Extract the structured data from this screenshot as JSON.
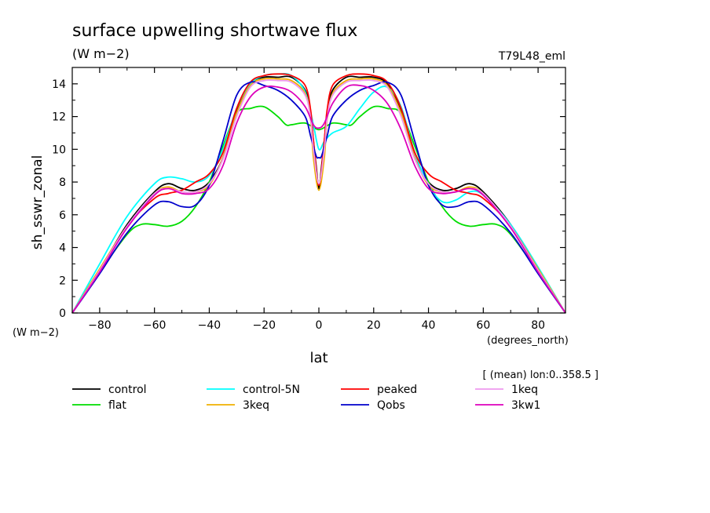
{
  "chart_data": {
    "type": "line",
    "title": "surface upwelling shortwave flux",
    "units": "(W m−2)",
    "experiment": "T79L48_eml",
    "xlabel": "lat",
    "xunits": "(degrees_north)",
    "ylabel": "sh_sswr_zonal",
    "yunits": "(W m−2)",
    "subset_note": "[ (mean) lon:0..358.5 ]",
    "xlim": [
      -90,
      90
    ],
    "ylim": [
      0,
      15
    ],
    "xticks": [
      -80,
      -60,
      -40,
      -20,
      0,
      20,
      40,
      60,
      80
    ],
    "yticks": [
      0,
      2,
      4,
      6,
      8,
      10,
      12,
      14
    ],
    "xtick_labels": [
      "−80",
      "−60",
      "−40",
      "−20",
      "0",
      "20",
      "40",
      "60",
      "80"
    ],
    "ytick_labels": [
      "0",
      "2",
      "4",
      "6",
      "8",
      "10",
      "12",
      "14"
    ],
    "grid": false,
    "legend_position": "bottom",
    "series": [
      {
        "name": "control",
        "color": "#000000",
        "x": [
          -90,
          -80,
          -70,
          -60,
          -55,
          -50,
          -45,
          -40,
          -35,
          -30,
          -25,
          -20,
          -15,
          -10,
          -5,
          -3,
          -2,
          -1,
          0,
          1,
          2,
          3,
          5,
          10,
          15,
          20,
          25,
          30,
          35,
          40,
          45,
          50,
          55,
          60,
          70,
          80,
          90
        ],
        "y": [
          0,
          2.6,
          5.4,
          7.4,
          7.9,
          7.6,
          7.5,
          8.0,
          9.5,
          12.3,
          14.0,
          14.4,
          14.4,
          14.4,
          13.6,
          12.2,
          10.5,
          9.0,
          7.6,
          9.0,
          10.5,
          12.2,
          13.6,
          14.4,
          14.4,
          14.4,
          14.0,
          12.3,
          9.5,
          8.0,
          7.5,
          7.6,
          7.9,
          7.4,
          5.4,
          2.6,
          0
        ]
      },
      {
        "name": "flat",
        "color": "#00dd00",
        "x": [
          -90,
          -80,
          -70,
          -65,
          -60,
          -55,
          -50,
          -45,
          -40,
          -35,
          -30,
          -25,
          -20,
          -15,
          -12,
          -10,
          -5,
          0,
          5,
          10,
          12,
          15,
          20,
          25,
          30,
          35,
          40,
          45,
          50,
          55,
          60,
          65,
          70,
          80,
          90
        ],
        "y": [
          0,
          2.5,
          4.8,
          5.4,
          5.4,
          5.3,
          5.6,
          6.5,
          8.0,
          10.2,
          12.2,
          12.5,
          12.6,
          12.0,
          11.5,
          11.5,
          11.6,
          11.2,
          11.6,
          11.5,
          11.5,
          12.0,
          12.6,
          12.5,
          12.2,
          10.2,
          8.0,
          6.5,
          5.6,
          5.3,
          5.4,
          5.4,
          4.8,
          2.5,
          0
        ]
      },
      {
        "name": "control-5N",
        "color": "#00ffff",
        "x": [
          -90,
          -80,
          -70,
          -60,
          -55,
          -50,
          -45,
          -40,
          -35,
          -30,
          -25,
          -20,
          -15,
          -10,
          -5,
          -2,
          0,
          2,
          5,
          10,
          15,
          20,
          25,
          30,
          35,
          40,
          45,
          50,
          55,
          60,
          70,
          80,
          90
        ],
        "y": [
          0,
          3.0,
          5.9,
          7.9,
          8.3,
          8.2,
          8.0,
          8.4,
          10.0,
          12.5,
          14.0,
          14.5,
          14.6,
          14.5,
          13.5,
          11.5,
          10.0,
          10.5,
          11.0,
          11.4,
          12.5,
          13.5,
          13.8,
          12.6,
          9.8,
          7.8,
          6.8,
          6.9,
          7.4,
          7.2,
          5.4,
          2.8,
          0
        ]
      },
      {
        "name": "3keq",
        "color": "#f0b000",
        "x": [
          -90,
          -80,
          -70,
          -60,
          -55,
          -50,
          -45,
          -40,
          -35,
          -30,
          -25,
          -20,
          -15,
          -10,
          -5,
          -3,
          -2,
          0,
          2,
          3,
          5,
          10,
          15,
          20,
          25,
          30,
          35,
          40,
          45,
          50,
          55,
          60,
          70,
          80,
          90
        ],
        "y": [
          0,
          2.7,
          5.3,
          7.3,
          7.7,
          7.4,
          7.4,
          7.8,
          9.5,
          12.2,
          13.9,
          14.3,
          14.3,
          14.2,
          13.4,
          11.8,
          9.5,
          7.5,
          9.5,
          11.8,
          13.4,
          14.2,
          14.3,
          14.3,
          13.9,
          12.2,
          9.5,
          7.8,
          7.4,
          7.4,
          7.7,
          7.3,
          5.3,
          2.7,
          0
        ]
      },
      {
        "name": "peaked",
        "color": "#ff0000",
        "x": [
          -90,
          -80,
          -70,
          -60,
          -55,
          -50,
          -45,
          -40,
          -35,
          -30,
          -25,
          -20,
          -15,
          -10,
          -5,
          -3,
          -2,
          0,
          2,
          3,
          5,
          10,
          15,
          20,
          25,
          30,
          35,
          40,
          45,
          50,
          55,
          60,
          70,
          80,
          90
        ],
        "y": [
          0,
          2.6,
          5.3,
          7.0,
          7.3,
          7.5,
          8.0,
          8.5,
          9.8,
          12.5,
          14.1,
          14.5,
          14.6,
          14.5,
          13.9,
          12.4,
          10.6,
          7.8,
          10.6,
          12.4,
          13.9,
          14.5,
          14.6,
          14.5,
          14.1,
          12.5,
          9.8,
          8.5,
          8.0,
          7.5,
          7.3,
          7.0,
          5.3,
          2.6,
          0
        ]
      },
      {
        "name": "Qobs",
        "color": "#0000cc",
        "x": [
          -90,
          -80,
          -70,
          -60,
          -55,
          -50,
          -45,
          -40,
          -35,
          -30,
          -25,
          -20,
          -15,
          -10,
          -5,
          -3,
          -1,
          0,
          1,
          3,
          5,
          10,
          15,
          20,
          25,
          30,
          35,
          40,
          45,
          50,
          55,
          60,
          70,
          80,
          90
        ],
        "y": [
          0,
          2.4,
          4.9,
          6.6,
          6.8,
          6.5,
          6.6,
          7.8,
          10.5,
          13.3,
          14.1,
          13.9,
          13.6,
          13.0,
          12.0,
          10.8,
          9.6,
          9.5,
          9.6,
          10.8,
          12.0,
          13.0,
          13.6,
          13.9,
          14.1,
          13.3,
          10.5,
          7.8,
          6.6,
          6.5,
          6.8,
          6.6,
          4.9,
          2.4,
          0
        ]
      },
      {
        "name": "1keq",
        "color": "#ee99ee",
        "x": [
          -90,
          -80,
          -70,
          -60,
          -55,
          -50,
          -45,
          -40,
          -35,
          -30,
          -25,
          -20,
          -15,
          -10,
          -5,
          -3,
          -2,
          0,
          2,
          3,
          5,
          10,
          15,
          20,
          25,
          30,
          35,
          40,
          45,
          50,
          55,
          60,
          70,
          80,
          90
        ],
        "y": [
          0,
          2.6,
          5.3,
          7.3,
          7.6,
          7.4,
          7.4,
          7.9,
          9.4,
          12.0,
          13.8,
          14.2,
          14.2,
          14.1,
          13.3,
          11.9,
          10.0,
          7.9,
          10.0,
          11.9,
          13.3,
          14.1,
          14.2,
          14.2,
          13.8,
          12.0,
          9.4,
          7.9,
          7.4,
          7.4,
          7.6,
          7.3,
          5.3,
          2.6,
          0
        ]
      },
      {
        "name": "3kw1",
        "color": "#dd00bb",
        "x": [
          -90,
          -80,
          -70,
          -60,
          -55,
          -50,
          -45,
          -40,
          -35,
          -30,
          -25,
          -20,
          -15,
          -10,
          -5,
          -2,
          0,
          2,
          5,
          10,
          15,
          20,
          25,
          30,
          35,
          40,
          45,
          50,
          55,
          60,
          70,
          80,
          90
        ],
        "y": [
          0,
          2.5,
          5.2,
          7.2,
          7.6,
          7.3,
          7.3,
          7.6,
          9.0,
          11.6,
          13.2,
          13.8,
          13.8,
          13.5,
          12.6,
          11.5,
          11.3,
          11.6,
          12.8,
          13.8,
          13.9,
          13.6,
          12.8,
          11.2,
          9.0,
          7.6,
          7.3,
          7.4,
          7.6,
          7.2,
          5.2,
          2.5,
          0
        ]
      }
    ]
  }
}
